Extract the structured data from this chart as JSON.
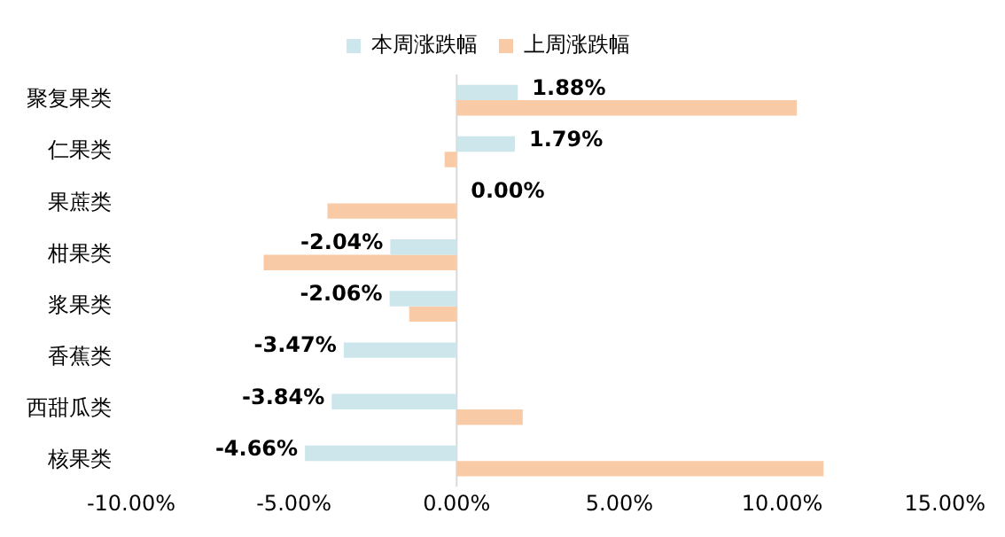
{
  "chart_data": {
    "type": "bar",
    "orientation": "horizontal",
    "categories": [
      "聚复果类",
      "仁果类",
      "果蔗类",
      "柑果类",
      "浆果类",
      "香蕉类",
      "西甜瓜类",
      "核果类"
    ],
    "series": [
      {
        "name": "本周涨跌幅",
        "color": "#cce6ec",
        "values": [
          1.88,
          1.79,
          0.0,
          -2.04,
          -2.06,
          -3.47,
          -3.84,
          -4.66
        ],
        "value_labels": [
          "1.88%",
          "1.79%",
          "0.00%",
          "-2.04%",
          "-2.06%",
          "-3.47%",
          "-3.84%",
          "-4.66%"
        ]
      },
      {
        "name": "上周涨跌幅",
        "color": "#f8cba6",
        "values": [
          10.45,
          -0.37,
          -3.97,
          -5.93,
          -1.46,
          0,
          2.03,
          11.27
        ]
      }
    ],
    "xlim": [
      -10,
      15
    ],
    "xticks": [
      {
        "value": -10,
        "label": "-10.00%"
      },
      {
        "value": -5,
        "label": "-5.00%"
      },
      {
        "value": 0,
        "label": "0.00%"
      },
      {
        "value": 5,
        "label": "5.00%"
      },
      {
        "value": 10,
        "label": "10.00%"
      },
      {
        "value": 15,
        "label": "15.00%"
      }
    ],
    "ref_lines": [
      {
        "axis": "x",
        "value": 0,
        "color": "#d9d9d9"
      }
    ],
    "grid": false,
    "legend": "top"
  }
}
